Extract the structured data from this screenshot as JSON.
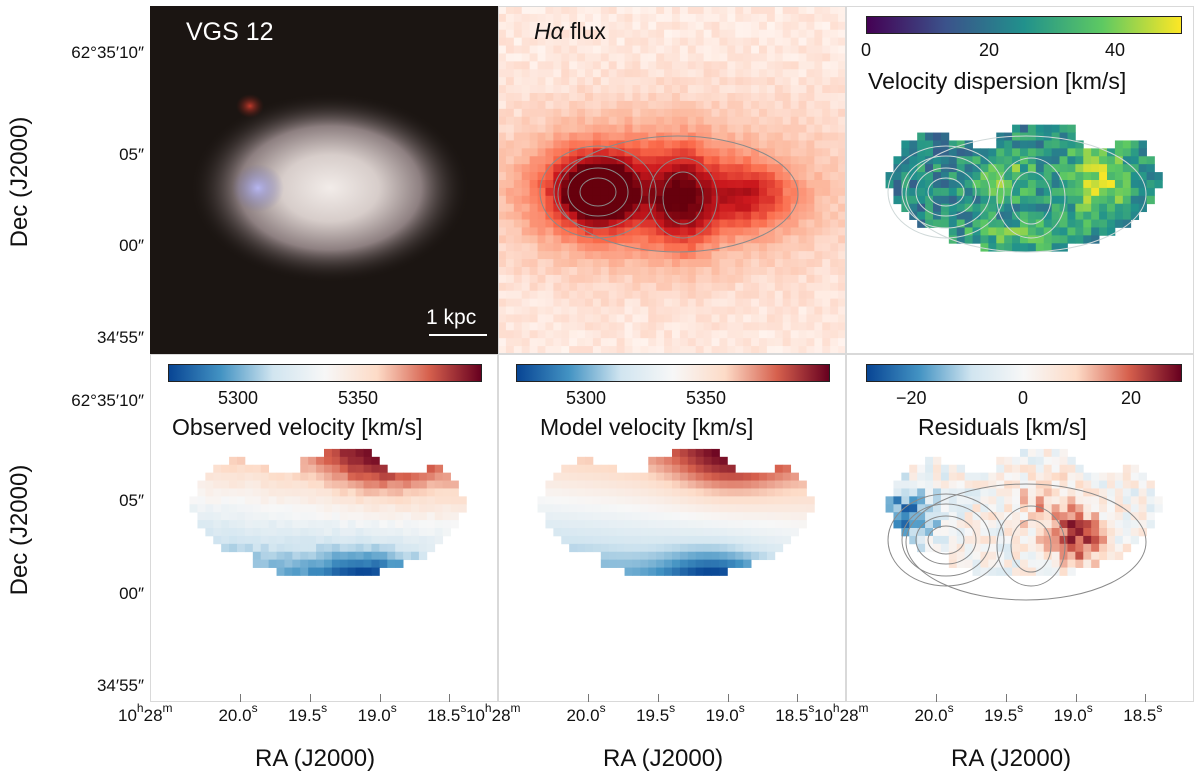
{
  "figure": {
    "object_label": "VGS 12",
    "scale_bar_label": "1 kpc",
    "ylabel": "Dec (J2000)",
    "xlabel": "RA (J2000)",
    "yticks": [
      "62°35′10″",
      "05″",
      "00″",
      "34′55″"
    ],
    "xticks": {
      "h_prefix": "10",
      "h_sup": "h",
      "m_prefix": "28",
      "m_sup": "m",
      "s_sup": "s",
      "values": [
        "20.0",
        "19.5",
        "19.0",
        "18.5"
      ]
    }
  },
  "panels": {
    "halpha": {
      "title_symbol": "Hα",
      "title_rest": " flux"
    },
    "dispersion": {
      "colorbar_label": "Velocity dispersion [km/s]",
      "ticks": [
        "0",
        "20",
        "40"
      ],
      "range": [
        0,
        50
      ]
    },
    "observed": {
      "colorbar_label": "Observed velocity [km/s]",
      "ticks": [
        "5300",
        "5350"
      ],
      "range": [
        5265,
        5395
      ]
    },
    "model": {
      "colorbar_label": "Model velocity [km/s]",
      "ticks": [
        "5300",
        "5350"
      ],
      "range": [
        5265,
        5395
      ]
    },
    "residuals": {
      "colorbar_label": "Residuals [km/s]",
      "ticks": [
        "−20",
        "0",
        "20"
      ],
      "range": [
        -30,
        30
      ]
    }
  },
  "colors": {
    "viridis": [
      "#440154",
      "#3b528b",
      "#21918c",
      "#5ec962",
      "#fde725"
    ],
    "rdbu": [
      "#084594",
      "#4393c3",
      "#d1e5f0",
      "#f7f7f7",
      "#fddbc7",
      "#d6604d",
      "#67001f"
    ],
    "reds": [
      "#fff5f0",
      "#fcbba1",
      "#fb6a4a",
      "#cb181d",
      "#67000d"
    ]
  }
}
